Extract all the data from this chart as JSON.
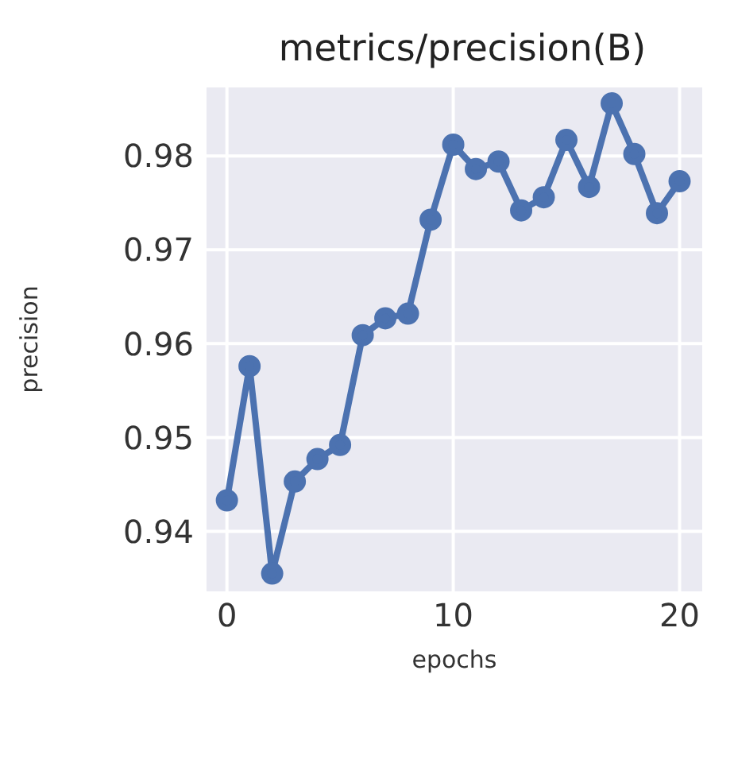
{
  "chart_data": {
    "type": "line",
    "title": "metrics/precision(B)",
    "xlabel": "epochs",
    "ylabel": "precision",
    "x": [
      0,
      1,
      2,
      3,
      4,
      5,
      6,
      7,
      8,
      9,
      10,
      11,
      12,
      13,
      14,
      15,
      16,
      17,
      18,
      19,
      20
    ],
    "series": [
      {
        "color": "#4c72b0",
        "values": [
          0.9433,
          0.9576,
          0.9355,
          0.9453,
          0.9477,
          0.9492,
          0.9609,
          0.9627,
          0.9632,
          0.9732,
          0.9812,
          0.9786,
          0.9794,
          0.9742,
          0.9756,
          0.9817,
          0.9767,
          0.9856,
          0.9802,
          0.9739,
          0.9773
        ]
      }
    ],
    "xlim": [
      -0.9,
      21
    ],
    "xticks": [
      0,
      10,
      20
    ],
    "ylim": [
      0.9336,
      0.9873
    ],
    "yticks": [
      0.94,
      0.95,
      0.96,
      0.97,
      0.98
    ],
    "grid": true,
    "marker": "circle",
    "line_style": "solid"
  }
}
